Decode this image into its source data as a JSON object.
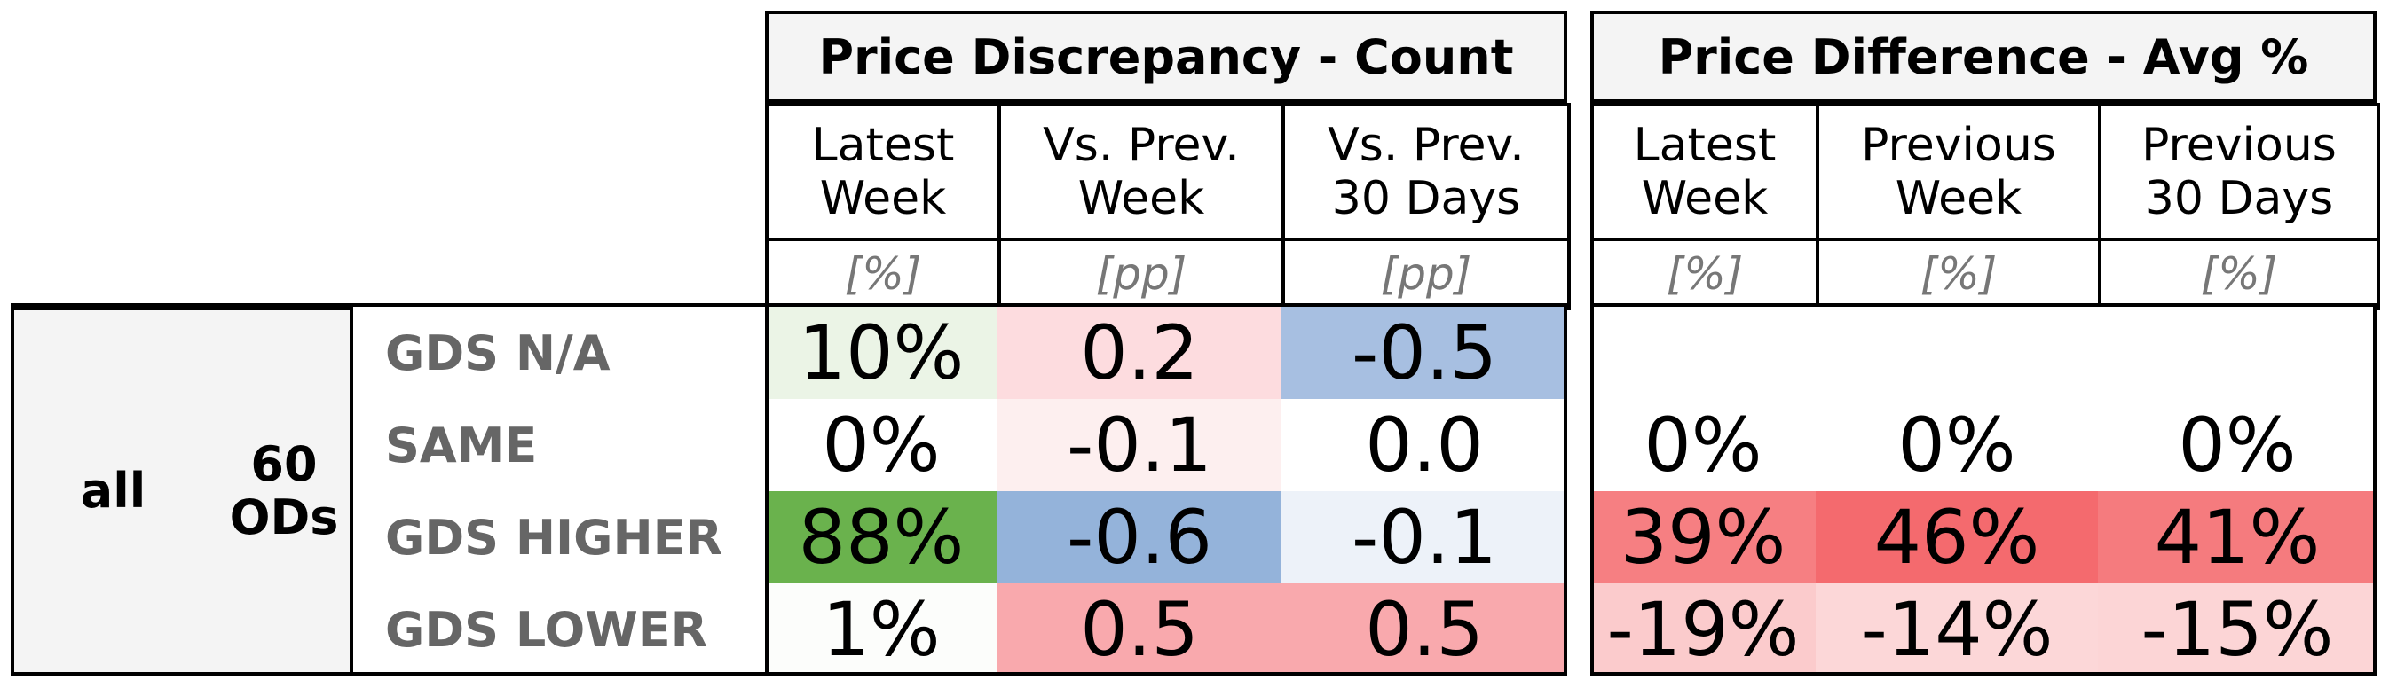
{
  "chart_data": {
    "type": "table",
    "groups": [
      {
        "title": "Price Discrepancy - Count",
        "columns": [
          {
            "label": "Latest\nWeek",
            "unit": "[%]"
          },
          {
            "label": "Vs. Prev.\nWeek",
            "unit": "[pp]"
          },
          {
            "label": "Vs. Prev.\n30 Days",
            "unit": "[pp]"
          }
        ]
      },
      {
        "title": "Price Difference - Avg %",
        "columns": [
          {
            "label": "Latest\nWeek",
            "unit": "[%]"
          },
          {
            "label": "Previous\nWeek",
            "unit": "[%]"
          },
          {
            "label": "Previous\n30 Days",
            "unit": "[%]"
          }
        ]
      }
    ],
    "row_group": {
      "segment": "all",
      "count": "60\nODs"
    },
    "rows": [
      {
        "label": "GDS N/A",
        "count": [
          "10%",
          "0.2",
          "-0.5"
        ],
        "avg": [
          "",
          "",
          ""
        ]
      },
      {
        "label": "SAME",
        "count": [
          "0%",
          "-0.1",
          "0.0"
        ],
        "avg": [
          "0%",
          "0%",
          "0%"
        ]
      },
      {
        "label": "GDS HIGHER",
        "count": [
          "88%",
          "-0.6",
          "-0.1"
        ],
        "avg": [
          "39%",
          "46%",
          "41%"
        ]
      },
      {
        "label": "GDS LOWER",
        "count": [
          "1%",
          "0.5",
          "0.5"
        ],
        "avg": [
          "-19%",
          "-14%",
          "-15%"
        ]
      }
    ],
    "cell_colors": {
      "count": [
        [
          "#ebf4e6",
          "#fddcdf",
          "#a7bfe1"
        ],
        [
          "#ffffff",
          "#fdefef",
          "#ffffff"
        ],
        [
          "#6ab24d",
          "#94b3da",
          "#edf2f9"
        ],
        [
          "#fcfdfb",
          "#f9a9ad",
          "#f9a9ad"
        ]
      ],
      "avg": [
        [
          "#ffffff",
          "#ffffff",
          "#ffffff"
        ],
        [
          "#ffffff",
          "#ffffff",
          "#ffffff"
        ],
        [
          "#f67f82",
          "#f46a6e",
          "#f57b7e"
        ],
        [
          "#fbcbcc",
          "#fcd7d8",
          "#fcd5d6"
        ]
      ]
    }
  }
}
